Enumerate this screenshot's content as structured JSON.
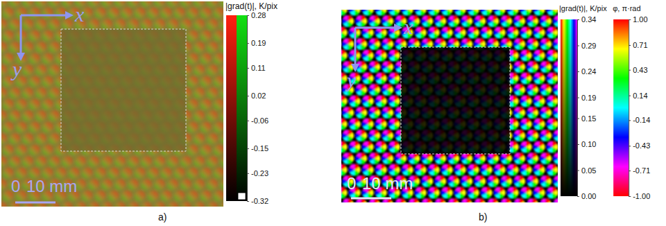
{
  "chart_data": [
    {
      "type": "heatmap",
      "label": "a)",
      "axis_labels": [
        "x",
        "y"
      ],
      "scale_bar": [
        {
          "value": 0,
          "label": "0"
        },
        {
          "value": 10,
          "label": "10 mm"
        }
      ],
      "colorbars": [
        {
          "title": "|grad(t)|, K/pix",
          "type": "fade",
          "colors": [
            "#ff2010",
            "#12e012"
          ],
          "range": [
            -0.32,
            0.28
          ],
          "ticks": [
            0.28,
            0.19,
            0.11,
            0.02,
            -0.06,
            -0.15,
            -0.23,
            -0.32
          ]
        }
      ]
    },
    {
      "type": "heatmap",
      "label": "b)",
      "axis_labels": [
        "x",
        "y"
      ],
      "scale_bar": [
        {
          "value": 0,
          "label": "0"
        },
        {
          "value": 10,
          "label": "10 mm"
        }
      ],
      "colorbars": [
        {
          "title": "|grad(t)|, K/pix",
          "type": "fade",
          "colors": [
            "#ff0000",
            "#ffff00",
            "#00ff00",
            "#00ffff",
            "#0000ff",
            "#ff00ff"
          ],
          "range": [
            0,
            0.34
          ],
          "ticks": [
            0.34,
            0.29,
            0.24,
            0.19,
            0.15,
            {
              "value": 0.1,
              "label": "0.10"
            },
            0.05,
            {
              "value": 0,
              "label": "0.00"
            }
          ]
        },
        {
          "title": "φ, π·rad",
          "type": "cyclic",
          "colors": [
            "#ff0000",
            "#ffff00",
            "#00ff00",
            "#00ffff",
            "#0000ff",
            "#ff00ff",
            "#ff0000"
          ],
          "range": [
            -1,
            1
          ],
          "ticks": [
            {
              "value": 1,
              "label": "1.00"
            },
            0.71,
            0.43,
            0.14,
            -0.14,
            -0.43,
            -0.71,
            {
              "value": -1,
              "label": "-1.00"
            }
          ]
        }
      ]
    }
  ]
}
